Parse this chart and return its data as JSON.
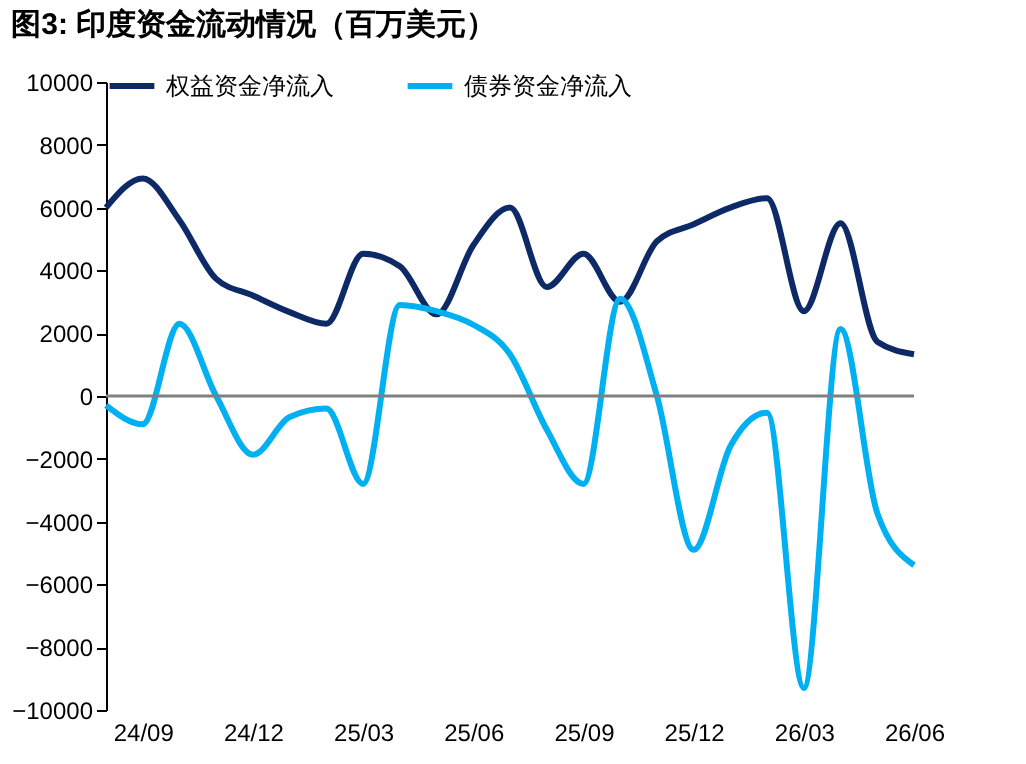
{
  "chart_data": {
    "type": "line",
    "title": "图3:  印度资金流动情况（百万美元）",
    "categories": [
      null,
      "24/09",
      null,
      null,
      "24/12",
      null,
      null,
      "25/03",
      null,
      null,
      "25/06",
      null,
      null,
      "25/09",
      null,
      null,
      "25/12",
      null,
      null,
      "26/03",
      null,
      null,
      "26/06"
    ],
    "series": [
      {
        "name": "权益资金净流入",
        "color": "#0d2a66",
        "values": [
          6000,
          6930,
          5600,
          3730,
          3200,
          2670,
          2300,
          4530,
          4130,
          2600,
          4800,
          6000,
          3470,
          4530,
          3000,
          4930,
          5470,
          6000,
          6300,
          2700,
          5500,
          1730,
          1330
        ]
      },
      {
        "name": "债券资金净流入",
        "color": "#00b0f0",
        "values": [
          -300,
          -900,
          2300,
          0,
          -1870,
          -670,
          -400,
          -2800,
          2900,
          2700,
          2270,
          1330,
          -1070,
          -2800,
          3100,
          0,
          -4900,
          -1600,
          -530,
          -9300,
          2130,
          -3730,
          -5390
        ]
      }
    ],
    "ylim": [
      -10000,
      10000
    ],
    "yticks": [
      -10000,
      -8000,
      -6000,
      -4000,
      -2000,
      0,
      2000,
      4000,
      6000,
      8000,
      10000
    ],
    "ref_lines": [
      {
        "axis": "y",
        "value": 0,
        "color": "#808080"
      }
    ],
    "grid": false,
    "legend": "top",
    "line_style": "solid",
    "marker": "none"
  }
}
